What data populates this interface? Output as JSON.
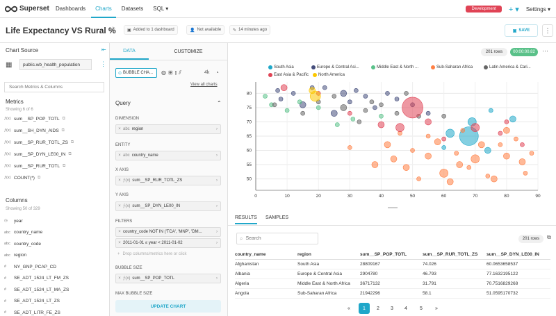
{
  "nav": {
    "logo": "Superset",
    "links": [
      "Dashboards",
      "Charts",
      "Datasets",
      "SQL ▾"
    ],
    "env": "Development",
    "plus": "+ ▾",
    "settings": "Settings ▾"
  },
  "header": {
    "title": "Life Expectancy VS Rural %",
    "added": "Added to 1 dashboard",
    "owner": "Not available",
    "modified": "14 minutes ago",
    "save": "SAVE",
    "more": "⋮"
  },
  "source": {
    "heading": "Chart Source",
    "dataset": "public.wb_health_population",
    "search_placeholder": "Search Metrics & Columns",
    "metrics_heading": "Metrics",
    "metrics_count": "Showing 6 of 6",
    "metrics": [
      "sum__SP_POP_TOTL",
      "sum__SH_DYN_AIDS",
      "sum__SP_RUR_TOTL_ZS",
      "sum__SP_DYN_LE00_IN",
      "sum__SP_RUR_TOTL",
      "COUNT(*)"
    ],
    "columns_heading": "Columns",
    "columns_count": "Showing 50 of 329",
    "columns": [
      {
        "type": "◷",
        "name": "year"
      },
      {
        "type": "abc",
        "name": "country_name"
      },
      {
        "type": "abc",
        "name": "country_code"
      },
      {
        "type": "abc",
        "name": "region"
      },
      {
        "type": "#",
        "name": "NY_GNP_PCAP_CD"
      },
      {
        "type": "#",
        "name": "SE_ADT_1524_LT_FM_ZS"
      },
      {
        "type": "#",
        "name": "SE_ADT_1524_LT_MA_ZS"
      },
      {
        "type": "#",
        "name": "SE_ADT_1524_LT_ZS"
      },
      {
        "type": "#",
        "name": "SE_ADT_LITR_FE_ZS"
      }
    ]
  },
  "control": {
    "tabs": [
      "DATA",
      "CUSTOMIZE"
    ],
    "viz_type": "BUBBLE CHA...",
    "view_all": "View all charts",
    "more_count": "4k",
    "query_heading": "Query",
    "dimension_label": "DIMENSION",
    "dimension_value": "region",
    "entity_label": "ENTITY",
    "entity_value": "country_name",
    "xaxis_label": "X AXIS",
    "xaxis_value": "sum__SP_RUR_TOTL_ZS",
    "yaxis_label": "Y AXIS",
    "yaxis_value": "sum__SP_DYN_LE00_IN",
    "filters_label": "FILTERS",
    "filter1": "country_code NOT IN ('TCA', 'MNP', 'DM...",
    "filter2": "2011-01-01 ≤ year < 2011-01-02",
    "filter_drop": "Drop columns/metrics here or click",
    "bubble_label": "BUBBLE SIZE",
    "bubble_value": "sum__SP_POP_TOTL",
    "max_bubble_label": "MAX BUBBLE SIZE",
    "update": "UPDATE CHART",
    "type_prefix": "abc",
    "func_prefix": "ƒ(x)"
  },
  "main": {
    "rows_badge": "201 rows",
    "time_badge": "00:00:00.82",
    "results_tab": "RESULTS",
    "samples_tab": "SAMPLES",
    "search_placeholder": "Search",
    "table_rows_badge": "201 rows",
    "columns": [
      "country_name",
      "region",
      "sum__SP_POP_TOTL",
      "sum__SP_RUR_TOTL_ZS",
      "sum__SP_DYN_LE00_IN"
    ],
    "rows": [
      [
        "Afghanistan",
        "South Asia",
        "28809167",
        "74.026",
        "60.0653658537"
      ],
      [
        "Albania",
        "Europe & Central Asia",
        "2904780",
        "46.793",
        "77.1632195122"
      ],
      [
        "Algeria",
        "Middle East & North Africa",
        "36717132",
        "31.791",
        "70.7516829268"
      ],
      [
        "Angola",
        "Sub-Saharan Africa",
        "21942296",
        "58.1",
        "51.0595170732"
      ]
    ],
    "pages": [
      "«",
      "1",
      "2",
      "3",
      "4",
      "5",
      "»"
    ]
  },
  "chart_data": {
    "type": "scatter",
    "xlim": [
      0,
      90
    ],
    "ylim": [
      46,
      84
    ],
    "xticks": [
      0,
      10,
      20,
      30,
      40,
      50,
      60,
      70,
      80,
      90
    ],
    "yticks": [
      50,
      55,
      60,
      65,
      70,
      75,
      80
    ],
    "grid": true,
    "legend_position": "top",
    "series": [
      {
        "name": "South Asia",
        "color": "#1FA8C9",
        "points": [
          [
            68,
            65,
            9
          ],
          [
            62,
            66,
            4
          ],
          [
            74,
            60,
            3
          ],
          [
            69,
            70,
            4
          ],
          [
            82,
            71,
            3
          ],
          [
            75,
            74,
            2
          ],
          [
            60,
            61,
            2
          ]
        ]
      },
      {
        "name": "Europe & Central Asi...",
        "color": "#454E7C",
        "points": [
          [
            7,
            81,
            2
          ],
          [
            12,
            80,
            2
          ],
          [
            22,
            82,
            2
          ],
          [
            28,
            80,
            3
          ],
          [
            32,
            81,
            2
          ],
          [
            45,
            78,
            2
          ],
          [
            38,
            75,
            2
          ],
          [
            50,
            76,
            2
          ],
          [
            55,
            73,
            2
          ],
          [
            25,
            73,
            3
          ],
          [
            15,
            76,
            3
          ],
          [
            8,
            78,
            2
          ],
          [
            42,
            80,
            2
          ],
          [
            18,
            82,
            2
          ],
          [
            30,
            77,
            2
          ],
          [
            35,
            79,
            2
          ]
        ]
      },
      {
        "name": "Middle East & North ...",
        "color": "#5AC189",
        "points": [
          [
            3,
            79,
            2
          ],
          [
            14,
            77,
            2
          ],
          [
            10,
            74,
            2
          ],
          [
            31,
            71,
            2
          ],
          [
            20,
            75,
            2
          ],
          [
            40,
            72,
            2
          ],
          [
            5,
            76,
            2
          ],
          [
            26,
            69,
            2
          ]
        ]
      },
      {
        "name": "Sub-Saharan Africa",
        "color": "#FF7F44",
        "points": [
          [
            42,
            62,
            3
          ],
          [
            48,
            54,
            3
          ],
          [
            55,
            58,
            3
          ],
          [
            60,
            52,
            4
          ],
          [
            65,
            55,
            3
          ],
          [
            70,
            57,
            4
          ],
          [
            76,
            50,
            3
          ],
          [
            80,
            58,
            3
          ],
          [
            85,
            56,
            3
          ],
          [
            50,
            60,
            2
          ],
          [
            58,
            63,
            3
          ],
          [
            64,
            59,
            2
          ],
          [
            72,
            62,
            3
          ],
          [
            78,
            62,
            2
          ],
          [
            83,
            64,
            2
          ],
          [
            86,
            52,
            2
          ],
          [
            44,
            57,
            3
          ],
          [
            62,
            49,
            3
          ],
          [
            68,
            54,
            2
          ],
          [
            74,
            51,
            2
          ],
          [
            30,
            61,
            2
          ],
          [
            38,
            55,
            3
          ],
          [
            80,
            67,
            3
          ],
          [
            55,
            65,
            2
          ],
          [
            66,
            67,
            2
          ],
          [
            88,
            59,
            2
          ],
          [
            52,
            50,
            2
          ],
          [
            46,
            66,
            2
          ]
        ]
      },
      {
        "name": "Latin America & Cari...",
        "color": "#666666",
        "points": [
          [
            6,
            76,
            2
          ],
          [
            25,
            79,
            2
          ],
          [
            35,
            74,
            2
          ],
          [
            40,
            76,
            2
          ],
          [
            20,
            77,
            2
          ],
          [
            45,
            73,
            2
          ],
          [
            52,
            72,
            2
          ],
          [
            28,
            75,
            3
          ],
          [
            60,
            72,
            2
          ],
          [
            15,
            73,
            2
          ],
          [
            33,
            70,
            2
          ],
          [
            48,
            80,
            2
          ],
          [
            37,
            77,
            2
          ]
        ]
      },
      {
        "name": "East Asia & Pacific",
        "color": "#E04355",
        "points": [
          [
            50,
            75,
            10
          ],
          [
            9,
            82,
            3
          ],
          [
            46,
            68,
            4
          ],
          [
            70,
            68,
            4
          ],
          [
            40,
            69,
            3
          ],
          [
            30,
            73,
            2
          ],
          [
            80,
            70,
            2
          ],
          [
            85,
            62,
            2
          ],
          [
            60,
            64,
            2
          ],
          [
            78,
            66,
            2
          ],
          [
            20,
            80,
            2
          ],
          [
            55,
            70,
            3
          ]
        ]
      },
      {
        "name": "North America",
        "color": "#FCC700",
        "points": [
          [
            19,
            79,
            5
          ],
          [
            18,
            81,
            3
          ]
        ]
      }
    ]
  }
}
